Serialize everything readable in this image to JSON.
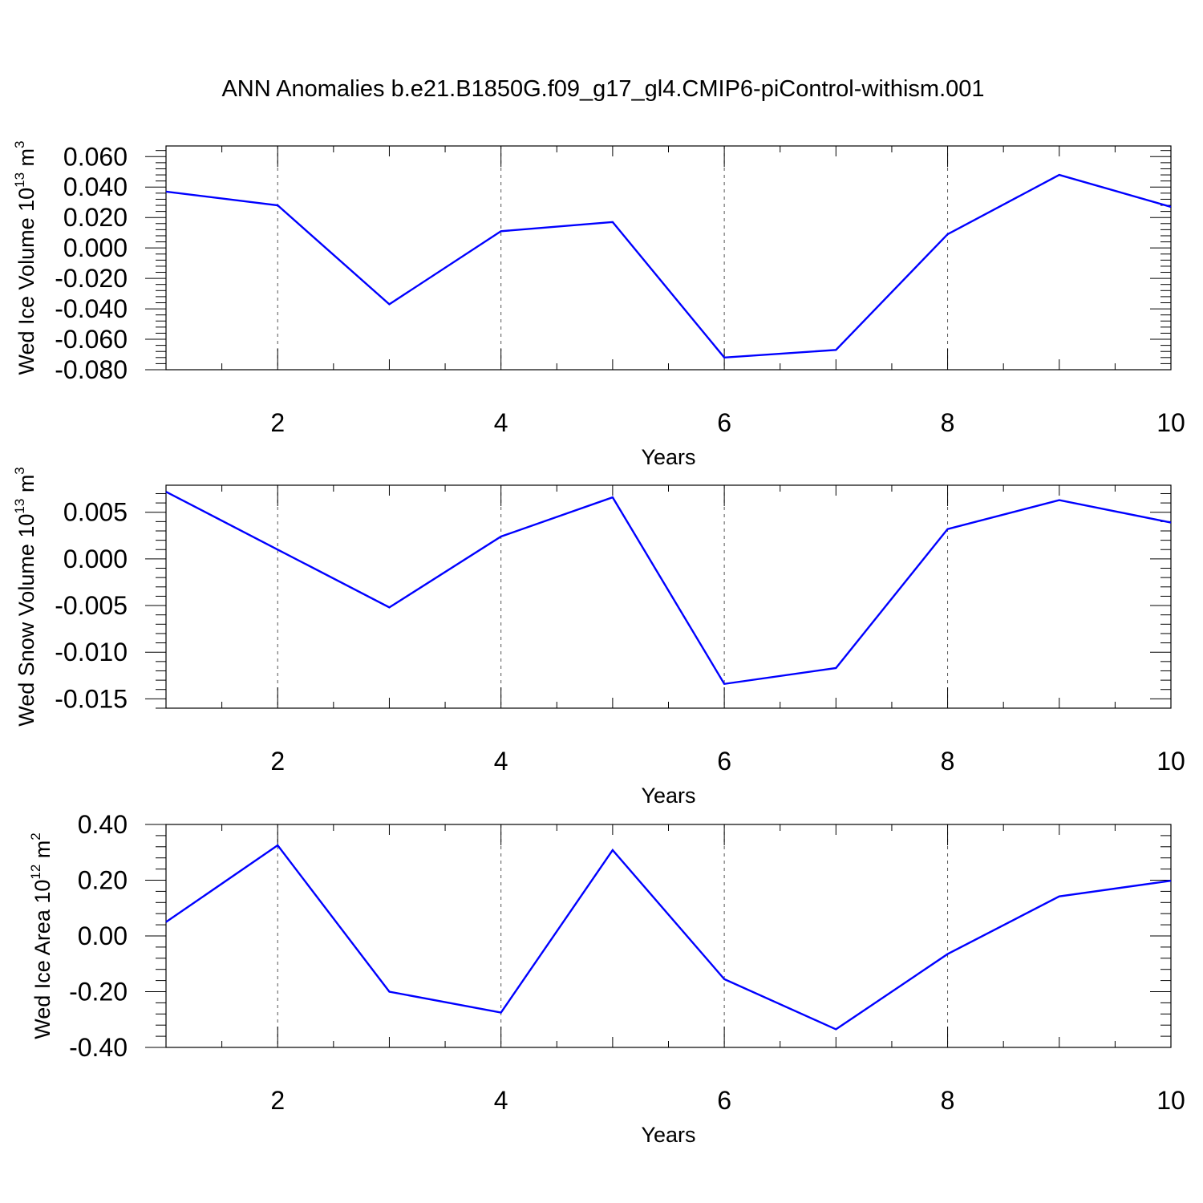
{
  "figure": {
    "title": "ANN Anomalies b.e21.B1850G.f09_g17_gl4.CMIP6-piControl-withism.001"
  },
  "colors": {
    "line": "#0000ff",
    "axis": "#000000",
    "grid": "#555555",
    "background": "#ffffff"
  },
  "chart_data": [
    {
      "type": "line",
      "ylabel": {
        "text": "Wed Ice Volume 10",
        "exp": "13",
        "unit": " m",
        "unit_exp": "3"
      },
      "xlabel": "Years",
      "x": [
        1,
        2,
        3,
        4,
        5,
        6,
        7,
        8,
        9,
        10
      ],
      "xlim": [
        1,
        10
      ],
      "xticks": [
        2,
        4,
        6,
        8,
        10
      ],
      "ylim": [
        -0.08,
        0.067
      ],
      "yticks": [
        -0.08,
        -0.06,
        -0.04,
        -0.02,
        0.0,
        0.02,
        0.04,
        0.06
      ],
      "ytick_labels": [
        "-0.080",
        "-0.060",
        "-0.040",
        "-0.020",
        "0.000",
        "0.020",
        "0.040",
        "0.060"
      ],
      "grid": "vertical dashed at major x ticks",
      "series": [
        {
          "values": [
            0.037,
            0.028,
            -0.037,
            0.011,
            0.017,
            -0.072,
            -0.067,
            0.009,
            0.048,
            0.027
          ]
        }
      ]
    },
    {
      "type": "line",
      "ylabel": {
        "text": "Wed Snow Volume 10",
        "exp": "13",
        "unit": " m",
        "unit_exp": "3"
      },
      "xlabel": "Years",
      "x": [
        1,
        2,
        3,
        4,
        5,
        6,
        7,
        8,
        9,
        10
      ],
      "xlim": [
        1,
        10
      ],
      "xticks": [
        2,
        4,
        6,
        8,
        10
      ],
      "ylim": [
        -0.016,
        0.0079
      ],
      "yticks": [
        -0.015,
        -0.01,
        -0.005,
        0.0,
        0.005
      ],
      "ytick_labels": [
        "-0.015",
        "-0.010",
        "-0.005",
        "0.000",
        "0.005"
      ],
      "grid": "vertical dashed at major x ticks",
      "series": [
        {
          "values": [
            0.0072,
            0.001,
            -0.0052,
            0.0024,
            0.0066,
            -0.0134,
            -0.0117,
            0.0032,
            0.0063,
            0.0039
          ]
        }
      ]
    },
    {
      "type": "line",
      "ylabel": {
        "text": "Wed Ice Area 10",
        "exp": "12",
        "unit": " m",
        "unit_exp": "2"
      },
      "xlabel": "Years",
      "x": [
        1,
        2,
        3,
        4,
        5,
        6,
        7,
        8,
        9,
        10
      ],
      "xlim": [
        1,
        10
      ],
      "xticks": [
        2,
        4,
        6,
        8,
        10
      ],
      "ylim": [
        -0.4,
        0.4
      ],
      "yticks": [
        -0.4,
        -0.2,
        0.0,
        0.2,
        0.4
      ],
      "ytick_labels": [
        "-0.40",
        "-0.20",
        "0.00",
        "0.20",
        "0.40"
      ],
      "grid": "vertical dashed at major x ticks",
      "series": [
        {
          "values": [
            0.05,
            0.325,
            -0.2,
            -0.275,
            0.308,
            -0.155,
            -0.335,
            -0.065,
            0.142,
            0.198
          ]
        }
      ]
    }
  ]
}
